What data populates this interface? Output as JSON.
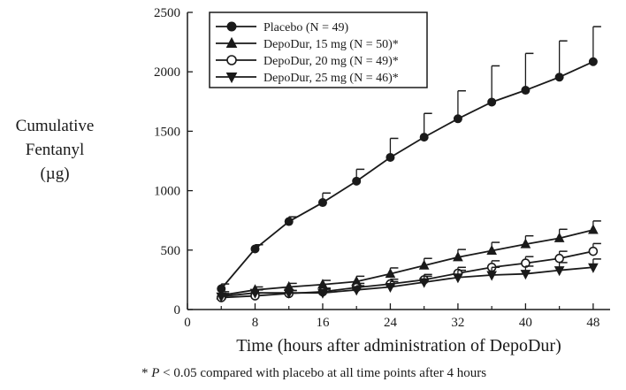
{
  "chart_data": {
    "type": "line",
    "title": "",
    "xlabel": "Time (hours after administration of DepoDur)",
    "ylabel_lines": [
      "Cumulative",
      "Fentanyl",
      "(µg)"
    ],
    "xlim": [
      0,
      50
    ],
    "ylim": [
      0,
      2500
    ],
    "xticks": [
      0,
      8,
      16,
      24,
      32,
      40,
      48
    ],
    "yticks": [
      0,
      500,
      1000,
      1500,
      2000,
      2500
    ],
    "grid": false,
    "legend_position": "top-left",
    "footnote": {
      "prefix": "* ",
      "italic": "P",
      "text": " < 0.05 compared with placebo at all time points after 4 hours"
    },
    "series": [
      {
        "name": "Placebo (N = 49)",
        "marker": "filled-circle",
        "x": [
          4,
          8,
          12,
          16,
          20,
          24,
          28,
          32,
          36,
          40,
          44,
          48
        ],
        "y": [
          175,
          510,
          740,
          900,
          1080,
          1280,
          1450,
          1605,
          1745,
          1845,
          1955,
          2085
        ],
        "err": [
          40,
          35,
          40,
          80,
          100,
          160,
          200,
          235,
          305,
          310,
          305,
          295
        ]
      },
      {
        "name": "DepoDur, 15 mg (N = 50)*",
        "marker": "filled-triangle-up",
        "x": [
          4,
          8,
          12,
          16,
          20,
          24,
          28,
          32,
          36,
          40,
          44,
          48
        ],
        "y": [
          120,
          165,
          190,
          210,
          235,
          300,
          370,
          440,
          495,
          550,
          600,
          670
        ],
        "err": [
          30,
          25,
          30,
          35,
          45,
          50,
          60,
          65,
          70,
          70,
          75,
          75
        ]
      },
      {
        "name": "DepoDur, 20 mg (N = 49)*",
        "marker": "open-circle",
        "x": [
          4,
          8,
          12,
          16,
          20,
          24,
          28,
          32,
          36,
          40,
          44,
          48
        ],
        "y": [
          100,
          115,
          135,
          150,
          185,
          215,
          250,
          305,
          355,
          390,
          430,
          490
        ],
        "err": [
          20,
          25,
          25,
          30,
          35,
          40,
          45,
          50,
          55,
          55,
          60,
          65
        ]
      },
      {
        "name": "DepoDur, 25 mg (N = 46)*",
        "marker": "filled-triangle-down",
        "x": [
          4,
          8,
          12,
          16,
          20,
          24,
          28,
          32,
          36,
          40,
          44,
          48
        ],
        "y": [
          110,
          140,
          140,
          140,
          165,
          190,
          230,
          270,
          290,
          300,
          330,
          355
        ],
        "err": [
          25,
          25,
          20,
          30,
          35,
          45,
          50,
          60,
          65,
          65,
          65,
          70
        ]
      }
    ]
  }
}
